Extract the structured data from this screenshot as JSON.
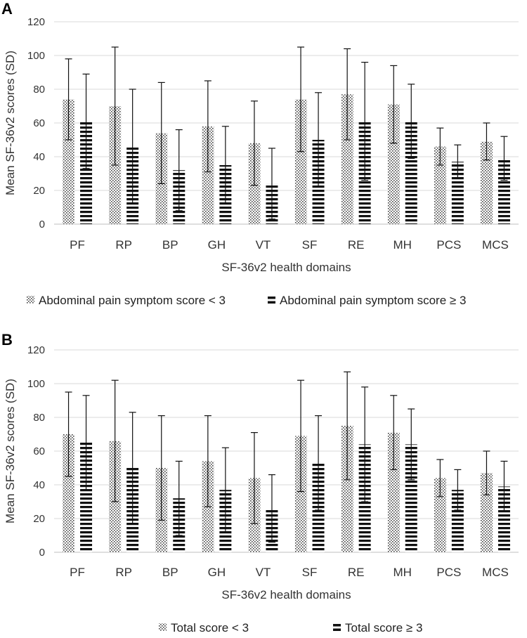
{
  "chart_data": [
    {
      "panel": "A",
      "type": "bar",
      "ylabel": "Mean SF-36v2 scores (SD)",
      "xlabel": "SF-36v2 health domains",
      "ylim": [
        0,
        120
      ],
      "yticks": [
        "0",
        "20",
        "40",
        "60",
        "80",
        "100",
        "120"
      ],
      "grid": true,
      "legend_position": "bottom",
      "categories": [
        "PF",
        "RP",
        "BP",
        "GH",
        "VT",
        "SF",
        "RE",
        "MH",
        "PCS",
        "MCS"
      ],
      "series": [
        {
          "name": "Abdominal pain symptom score < 3",
          "pattern": "dots",
          "values": [
            74,
            70,
            54,
            58,
            48,
            74,
            77,
            71,
            46,
            49
          ],
          "errors": [
            24,
            35,
            30,
            27,
            25,
            31,
            27,
            23,
            11,
            11
          ]
        },
        {
          "name": "Abdominal pain symptom score ≥ 3",
          "pattern": "stripes",
          "values": [
            61,
            46,
            32,
            35,
            24,
            50,
            61,
            61,
            37,
            39
          ],
          "errors": [
            28,
            34,
            24,
            23,
            21,
            28,
            35,
            22,
            10,
            13
          ]
        }
      ]
    },
    {
      "panel": "B",
      "type": "bar",
      "ylabel": "Mean SF-36v2 scores (SD)",
      "xlabel": "SF-36v2 health domains",
      "ylim": [
        0,
        120
      ],
      "yticks": [
        "0",
        "20",
        "40",
        "60",
        "80",
        "100",
        "120"
      ],
      "grid": true,
      "legend_position": "bottom",
      "categories": [
        "PF",
        "RP",
        "BP",
        "GH",
        "VT",
        "SF",
        "RE",
        "MH",
        "PCS",
        "MCS"
      ],
      "series": [
        {
          "name": "Total score < 3",
          "pattern": "dots",
          "values": [
            70,
            66,
            50,
            54,
            44,
            69,
            75,
            71,
            44,
            47
          ],
          "errors": [
            25,
            36,
            31,
            27,
            27,
            33,
            32,
            22,
            11,
            13
          ]
        },
        {
          "name": "Total score ≥ 3",
          "pattern": "stripes",
          "values": [
            65,
            50,
            32,
            37,
            26,
            53,
            64,
            64,
            37,
            39
          ],
          "errors": [
            28,
            33,
            22,
            25,
            20,
            28,
            34,
            21,
            12,
            15
          ]
        }
      ]
    }
  ]
}
